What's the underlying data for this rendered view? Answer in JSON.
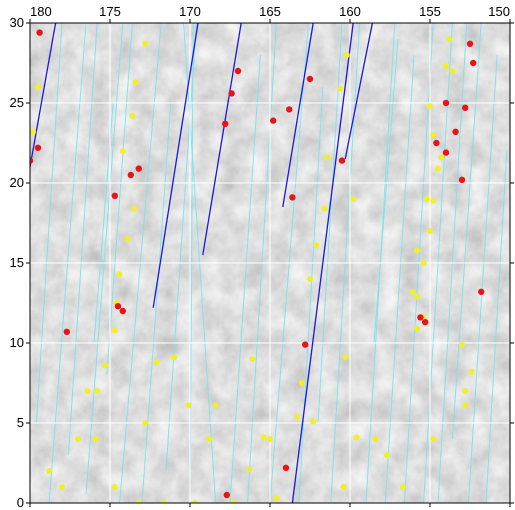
{
  "map": {
    "x_axis": {
      "range": [
        180,
        150
      ],
      "ticks": [
        {
          "value": 180,
          "label": "180"
        },
        {
          "value": 175,
          "label": "175"
        },
        {
          "value": 170,
          "label": "170"
        },
        {
          "value": 165,
          "label": "165"
        },
        {
          "value": 160,
          "label": "160"
        },
        {
          "value": 155,
          "label": "155"
        },
        {
          "value": 150,
          "label": "150"
        }
      ]
    },
    "y_axis": {
      "range": [
        0,
        30
      ],
      "ticks": [
        {
          "value": 0,
          "label": "0"
        },
        {
          "value": 5,
          "label": "5"
        },
        {
          "value": 10,
          "label": "10"
        },
        {
          "value": 15,
          "label": "15"
        },
        {
          "value": 20,
          "label": "20"
        },
        {
          "value": 25,
          "label": "25"
        },
        {
          "value": 30,
          "label": "30"
        }
      ]
    },
    "grid": true,
    "colors": {
      "background": "#b9b9b9",
      "grid": "#ffffff",
      "cyan_tracks": "#7fe3ef",
      "blue_tracks": "#1a1ad6",
      "red_points": "#e8141a",
      "yellow_points": "#f2ee2a"
    },
    "blue_tracks": [
      [
        [
          180.0,
          21.0
        ],
        [
          178.4,
          30.0
        ]
      ],
      [
        [
          172.3,
          12.2
        ],
        [
          169.5,
          30.0
        ]
      ],
      [
        [
          169.2,
          15.5
        ],
        [
          166.8,
          30.0
        ]
      ],
      [
        [
          164.2,
          18.5
        ],
        [
          162.3,
          30.0
        ]
      ],
      [
        [
          163.6,
          0.0
        ],
        [
          159.8,
          30.0
        ]
      ],
      [
        [
          160.3,
          21.5
        ],
        [
          158.6,
          30.0
        ]
      ]
    ],
    "cyan_tracks": [
      [
        [
          179.6,
          5.0
        ],
        [
          178.0,
          30.0
        ]
      ],
      [
        [
          178.8,
          0.0
        ],
        [
          176.5,
          30.0
        ]
      ],
      [
        [
          177.6,
          3.0
        ],
        [
          175.8,
          30.0
        ]
      ],
      [
        [
          176.5,
          0.5
        ],
        [
          174.2,
          30.0
        ]
      ],
      [
        [
          175.2,
          8.0
        ],
        [
          173.6,
          30.0
        ]
      ],
      [
        [
          174.4,
          0.0
        ],
        [
          171.8,
          30.0
        ]
      ],
      [
        [
          173.0,
          0.0
        ],
        [
          171.2,
          25.0
        ]
      ],
      [
        [
          171.5,
          2.0
        ],
        [
          169.6,
          30.0
        ]
      ],
      [
        [
          170.0,
          0.0
        ],
        [
          169.8,
          30.0
        ]
      ],
      [
        [
          168.4,
          0.0
        ],
        [
          170.4,
          30.0
        ]
      ],
      [
        [
          167.5,
          0.0
        ],
        [
          165.6,
          28.0
        ]
      ],
      [
        [
          166.4,
          0.0
        ],
        [
          164.6,
          30.0
        ]
      ],
      [
        [
          165.0,
          0.0
        ],
        [
          162.6,
          30.0
        ]
      ],
      [
        [
          163.2,
          0.0
        ],
        [
          161.7,
          26.0
        ]
      ],
      [
        [
          162.0,
          5.0
        ],
        [
          160.5,
          30.0
        ]
      ],
      [
        [
          161.2,
          0.0
        ],
        [
          159.4,
          30.0
        ]
      ],
      [
        [
          159.0,
          0.0
        ],
        [
          157.2,
          30.0
        ]
      ],
      [
        [
          157.8,
          0.0
        ],
        [
          156.0,
          28.0
        ]
      ],
      [
        [
          156.6,
          0.0
        ],
        [
          154.8,
          30.0
        ]
      ],
      [
        [
          155.4,
          0.0
        ],
        [
          153.6,
          30.0
        ]
      ],
      [
        [
          154.5,
          0.0
        ],
        [
          152.7,
          30.0
        ]
      ],
      [
        [
          153.6,
          4.0
        ],
        [
          151.8,
          30.0
        ]
      ],
      [
        [
          152.6,
          0.0
        ],
        [
          150.8,
          28.0
        ]
      ],
      [
        [
          151.5,
          0.0
        ],
        [
          150.2,
          22.0
        ]
      ],
      [
        [
          176.0,
          10.0
        ],
        [
          174.8,
          25.0
        ]
      ],
      [
        [
          158.5,
          10.0
        ],
        [
          157.0,
          29.0
        ]
      ]
    ],
    "red_points": [
      [
        179.4,
        29.4
      ],
      [
        180.0,
        21.4
      ],
      [
        179.5,
        22.2
      ],
      [
        174.7,
        19.2
      ],
      [
        173.7,
        20.5
      ],
      [
        173.2,
        20.9
      ],
      [
        174.2,
        12.0
      ],
      [
        174.5,
        12.3
      ],
      [
        177.7,
        10.7
      ],
      [
        167.4,
        25.6
      ],
      [
        167.0,
        27.0
      ],
      [
        167.8,
        23.7
      ],
      [
        162.5,
        26.5
      ],
      [
        163.8,
        24.6
      ],
      [
        164.8,
        23.9
      ],
      [
        163.6,
        19.1
      ],
      [
        160.5,
        21.4
      ],
      [
        162.8,
        9.9
      ],
      [
        164.0,
        2.2
      ],
      [
        167.7,
        0.5
      ],
      [
        152.5,
        28.7
      ],
      [
        152.3,
        27.5
      ],
      [
        152.8,
        24.7
      ],
      [
        154.0,
        25.0
      ],
      [
        154.6,
        22.5
      ],
      [
        154.0,
        21.9
      ],
      [
        153.4,
        23.2
      ],
      [
        153.0,
        20.2
      ],
      [
        151.8,
        13.2
      ],
      [
        155.6,
        11.6
      ],
      [
        155.3,
        11.3
      ]
    ],
    "yellow_points": [
      [
        179.5,
        26.0
      ],
      [
        179.8,
        23.2
      ],
      [
        172.8,
        28.7
      ],
      [
        173.4,
        26.3
      ],
      [
        173.6,
        24.2
      ],
      [
        174.2,
        22.0
      ],
      [
        173.5,
        18.4
      ],
      [
        173.9,
        16.5
      ],
      [
        174.4,
        14.3
      ],
      [
        174.6,
        12.5
      ],
      [
        174.7,
        10.8
      ],
      [
        175.3,
        8.6
      ],
      [
        175.8,
        7.0
      ],
      [
        176.4,
        7.0
      ],
      [
        177.0,
        4.0
      ],
      [
        175.9,
        4.0
      ],
      [
        178.0,
        1.0
      ],
      [
        178.8,
        2.0
      ],
      [
        174.7,
        1.0
      ],
      [
        173.2,
        0.0
      ],
      [
        171.6,
        0.0
      ],
      [
        169.7,
        0.0
      ],
      [
        172.8,
        5.0
      ],
      [
        172.1,
        8.8
      ],
      [
        171.0,
        9.1
      ],
      [
        170.1,
        6.1
      ],
      [
        168.8,
        4.0
      ],
      [
        168.4,
        6.1
      ],
      [
        167.3,
        0.0
      ],
      [
        166.1,
        9.0
      ],
      [
        165.4,
        4.1
      ],
      [
        164.6,
        0.3
      ],
      [
        166.3,
        2.1
      ],
      [
        165.0,
        4.0
      ],
      [
        163.3,
        5.4
      ],
      [
        162.3,
        5.1
      ],
      [
        160.3,
        9.1
      ],
      [
        159.6,
        4.1
      ],
      [
        160.4,
        1.0
      ],
      [
        160.6,
        25.9
      ],
      [
        161.4,
        21.6
      ],
      [
        161.6,
        18.4
      ],
      [
        162.1,
        16.1
      ],
      [
        162.5,
        14.0
      ],
      [
        163.0,
        7.5
      ],
      [
        160.2,
        28.0
      ],
      [
        159.8,
        19.0
      ],
      [
        153.8,
        29.0
      ],
      [
        154.0,
        27.3
      ],
      [
        153.6,
        27.0
      ],
      [
        155.0,
        24.8
      ],
      [
        154.8,
        23.0
      ],
      [
        154.3,
        21.6
      ],
      [
        154.5,
        20.9
      ],
      [
        155.2,
        19.0
      ],
      [
        154.8,
        18.9
      ],
      [
        155.0,
        17.0
      ],
      [
        155.8,
        15.8
      ],
      [
        155.4,
        15.0
      ],
      [
        156.1,
        13.2
      ],
      [
        155.8,
        12.9
      ],
      [
        155.4,
        11.6
      ],
      [
        155.8,
        10.9
      ],
      [
        157.7,
        3.0
      ],
      [
        156.7,
        1.0
      ],
      [
        153.0,
        9.9
      ],
      [
        152.8,
        7.0
      ],
      [
        152.4,
        8.2
      ],
      [
        152.8,
        6.1
      ],
      [
        154.8,
        4.0
      ],
      [
        158.4,
        4.0
      ]
    ]
  }
}
